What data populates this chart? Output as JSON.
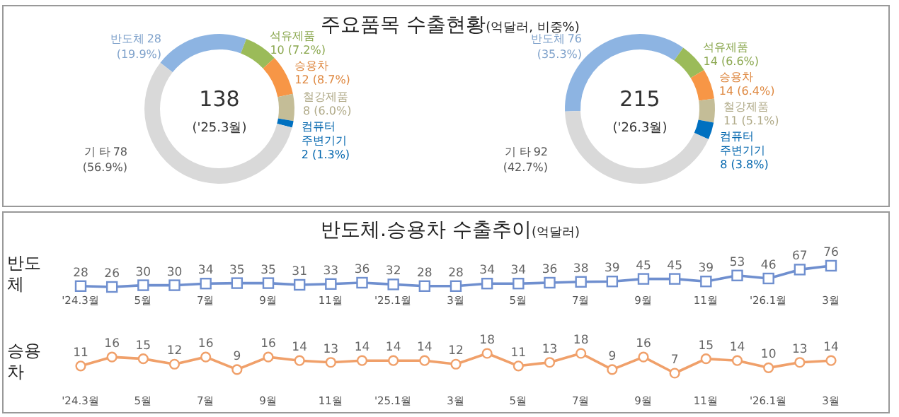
{
  "chart_data": [
    {
      "type": "donut",
      "title": "주요품목 수출현황(억달러, 비중%)",
      "categories": [
        "반도체",
        "석유제품",
        "승용차",
        "철강제품",
        "컴퓨터 주변기기",
        "기 타"
      ],
      "values": [
        28,
        10,
        12,
        8,
        2,
        78
      ],
      "value_labels": [
        "28 (19.9%)",
        "10 (7.2%)",
        "12 (8.7%)",
        "8 (6.0%)",
        "2 (1.3%)",
        "78 (56.9%)"
      ],
      "colors": [
        "#8db4e2",
        "#9bbb59",
        "#f79646",
        "#c4bd97",
        "#0070c0",
        "#d9d9d9"
      ],
      "annotations": [
        "138",
        "('25.3월)"
      ]
    },
    {
      "type": "donut",
      "categories": [
        "반도체",
        "석유제품",
        "승용차",
        "철강제품",
        "컴퓨터 주변기기",
        "기 타"
      ],
      "values": [
        76,
        14,
        14,
        11,
        8,
        92
      ],
      "value_labels": [
        "76 (35.3%)",
        "14 (6.6%)",
        "14 (6.4%)",
        "11 (5.1%)",
        "8 (3.8%)",
        "92 (42.7%)"
      ],
      "colors": [
        "#8db4e2",
        "#9bbb59",
        "#f79646",
        "#c4bd97",
        "#0070c0",
        "#d9d9d9"
      ],
      "annotations": [
        "215",
        "('26.3월)"
      ]
    },
    {
      "type": "line",
      "title": "반도체.승용차 수출추이(억달러)",
      "ylabel": "반도체",
      "categories": [
        "'24.3월",
        null,
        "5월",
        null,
        "7월",
        null,
        "9월",
        null,
        "11월",
        null,
        "'25.1월",
        null,
        "3월",
        null,
        "5월",
        null,
        "7월",
        null,
        "9월",
        null,
        "11월",
        null,
        "'26.1월",
        null,
        "3월"
      ],
      "series": [
        {
          "color": "#6f8fcf",
          "values": [
            28,
            26,
            30,
            30,
            34,
            35,
            35,
            31,
            33,
            36,
            32,
            28,
            28,
            34,
            34,
            36,
            38,
            39,
            45,
            45,
            39,
            53,
            46,
            67,
            76
          ]
        }
      ],
      "marker": "square",
      "data_labels": true
    },
    {
      "type": "line",
      "ylabel": "승용차",
      "categories": [
        "'24.3월",
        null,
        "5월",
        null,
        "7월",
        null,
        "9월",
        null,
        "11월",
        null,
        "'25.1월",
        null,
        "3월",
        null,
        "5월",
        null,
        "7월",
        null,
        "9월",
        null,
        "11월",
        null,
        "'26.1월",
        null,
        "3월"
      ],
      "series": [
        {
          "color": "#f0a06a",
          "values": [
            11,
            16,
            15,
            12,
            16,
            9,
            16,
            14,
            13,
            14,
            14,
            14,
            12,
            18,
            11,
            13,
            18,
            9,
            16,
            7,
            15,
            14,
            10,
            13,
            14
          ]
        }
      ],
      "marker": "circle",
      "data_labels": true
    }
  ]
}
